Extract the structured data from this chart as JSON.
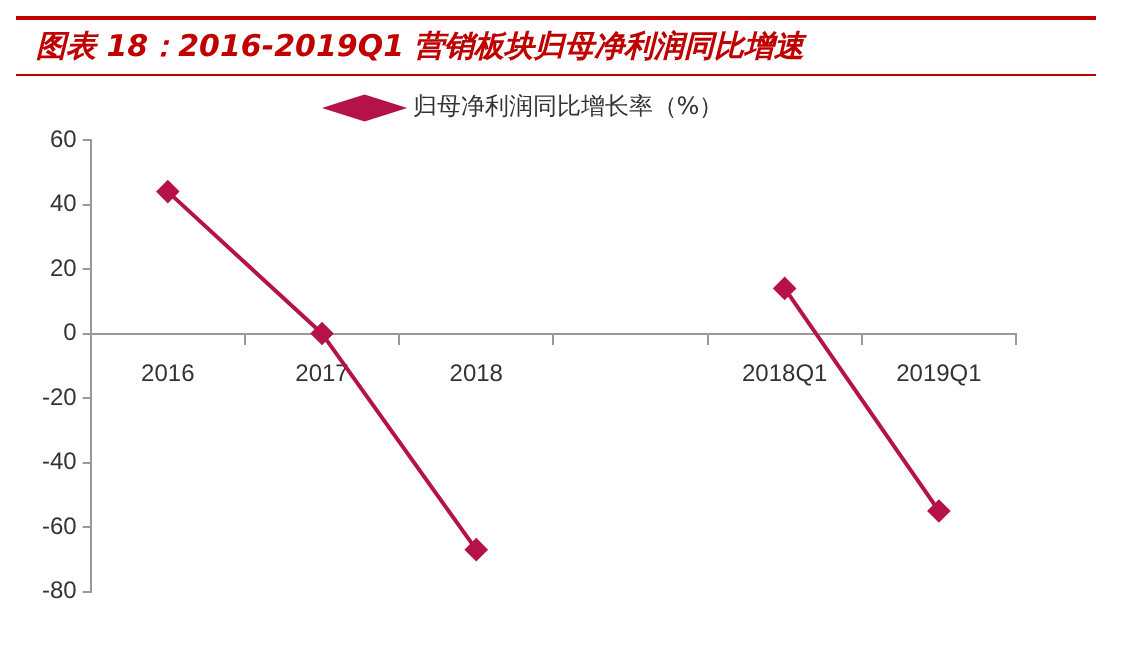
{
  "chart_data": {
    "type": "line",
    "title": "图表 18：2016-2019Q1 营销板块归母净利润同比增速",
    "categories": [
      "2016",
      "2017",
      "2018",
      null,
      "2018Q1",
      "2019Q1"
    ],
    "series": [
      {
        "name": "归母净利润同比增长率（%）",
        "color": "#b5124a",
        "values": [
          44,
          0,
          -67,
          null,
          14,
          -55
        ]
      }
    ],
    "ylim": [
      -80,
      60
    ],
    "yticks": [
      -80,
      -60,
      -40,
      -20,
      0,
      20,
      40,
      60
    ],
    "grid": false,
    "legend": "top",
    "marker": "diamond",
    "line_style": "solid"
  }
}
